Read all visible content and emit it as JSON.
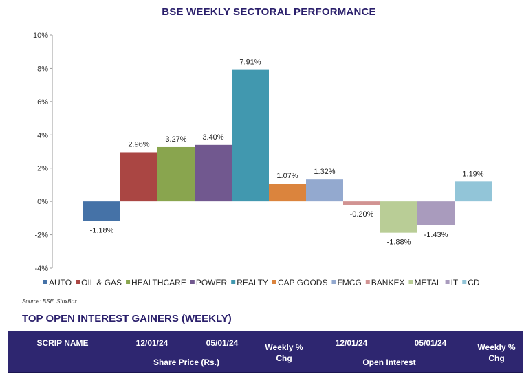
{
  "title": "BSE WEEKLY SECTORAL PERFORMANCE",
  "chart_data": {
    "type": "bar",
    "title": "BSE WEEKLY SECTORAL PERFORMANCE",
    "categories": [
      "AUTO",
      "OIL & GAS",
      "HEALTHCARE",
      "POWER",
      "REALTY",
      "CAP GOODS",
      "FMCG",
      "BANKEX",
      "METAL",
      "IT",
      "CD"
    ],
    "values": [
      -1.18,
      2.96,
      3.27,
      3.4,
      7.91,
      1.07,
      1.32,
      -0.2,
      -1.88,
      -1.43,
      1.19
    ],
    "data_labels": [
      "-1.18%",
      "2.96%",
      "3.27%",
      "3.40%",
      "7.91%",
      "1.07%",
      "1.32%",
      "-0.20%",
      "-1.88%",
      "-1.43%",
      "1.19%"
    ],
    "colors": [
      "#4572a7",
      "#aa4643",
      "#89a54e",
      "#71588f",
      "#4198af",
      "#db843d",
      "#93a9cf",
      "#d19392",
      "#b9cd96",
      "#a99bbd",
      "#92c5d8"
    ],
    "ylim": [
      -4,
      10
    ],
    "yticks": [
      -4,
      -2,
      0,
      2,
      4,
      6,
      8,
      10
    ],
    "ytick_labels": [
      "-4%",
      "-2%",
      "0%",
      "2%",
      "4%",
      "6%",
      "8%",
      "10%"
    ],
    "legend_position": "bottom",
    "grid": false,
    "xlabel": "",
    "ylabel": ""
  },
  "source": "Source: BSE, StoxBox",
  "table_section": {
    "title": "TOP OPEN INTEREST GAINERS (WEEKLY)",
    "header": {
      "scrip_name": "SCRIP NAME",
      "price_date1": "12/01/24",
      "price_date2": "05/01/24",
      "share_price_group": "Share Price (Rs.)",
      "weekly_chg_1": "Weekly % Chg",
      "oi_date1": "12/01/24",
      "oi_date2": "05/01/24",
      "open_interest_group": "Open Interest",
      "weekly_chg_2": "Weekly % Chg"
    }
  }
}
